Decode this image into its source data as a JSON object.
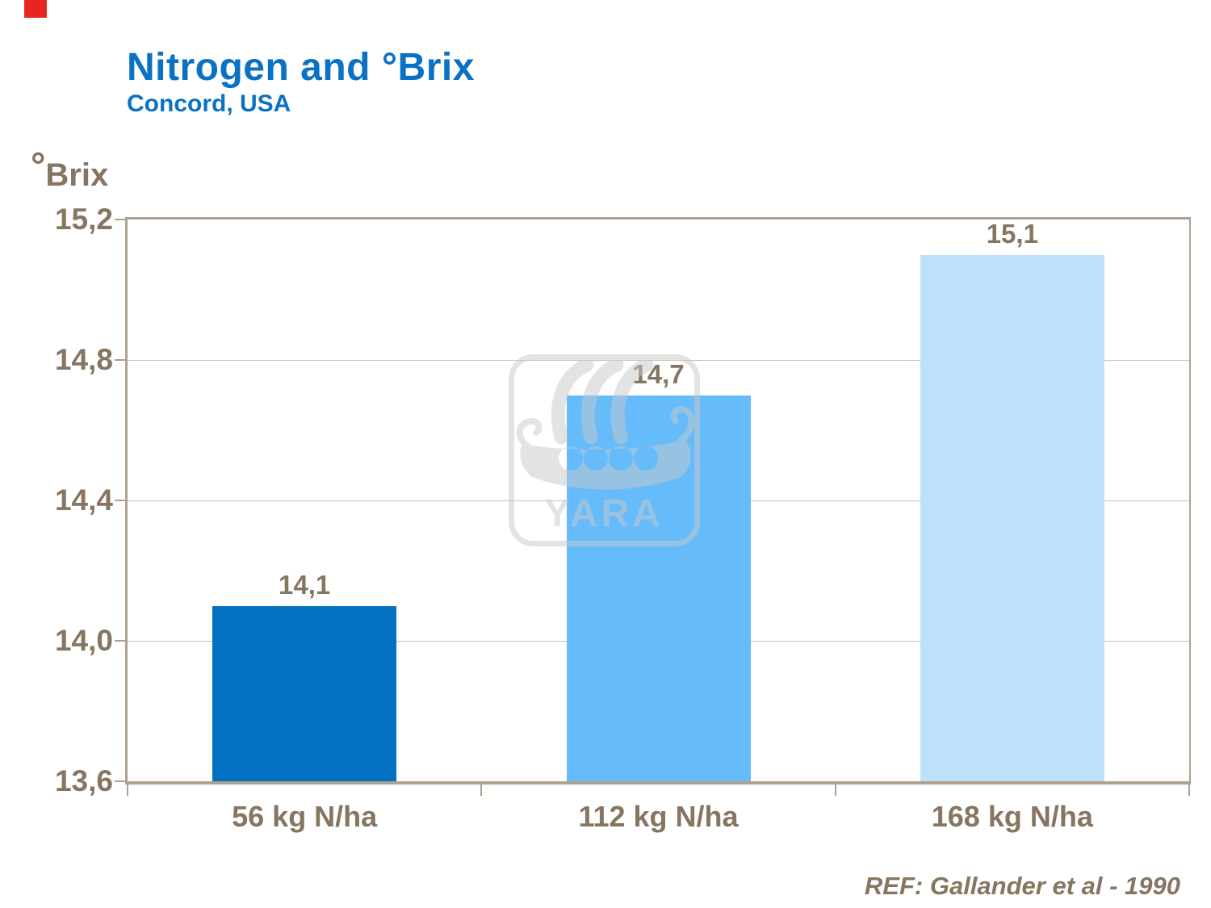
{
  "slide": {
    "title": "Nitrogen and °Brix",
    "subtitle": "Concord, USA",
    "y_unit_symbol": "°",
    "y_unit_text": "Brix",
    "reference": "REF: Gallander et al - 1990"
  },
  "chart_data": {
    "type": "bar",
    "title": "Nitrogen and °Brix",
    "subtitle": "Concord, USA",
    "categories": [
      "56 kg N/ha",
      "112 kg N/ha",
      "168 kg N/ha"
    ],
    "values": [
      14.1,
      14.7,
      15.1
    ],
    "value_labels": [
      "14,1",
      "14,7",
      "15,1"
    ],
    "xlabel": "",
    "ylabel": "°Brix",
    "ylim": [
      13.6,
      15.2
    ],
    "yticks": [
      {
        "value": 15.2,
        "label": "15,2"
      },
      {
        "value": 14.8,
        "label": "14,8"
      },
      {
        "value": 14.4,
        "label": "14,4"
      },
      {
        "value": 14.0,
        "label": "14,0"
      },
      {
        "value": 13.6,
        "label": "13,6"
      }
    ],
    "grid": true,
    "legend": "none",
    "bar_colors": [
      "#0571C2",
      "#66BBFA",
      "#BDE1F8"
    ]
  },
  "watermark": {
    "name": "yara-viking-ship-logo",
    "text": "YARA"
  },
  "colors": {
    "title_blue": "#0A72C5",
    "text_brown": "#867560",
    "frame_tan": "#AEA28F",
    "gridline": "#CCC2B2",
    "corner_red": "#E8251F",
    "watermark_gray": "#C9C9C9"
  }
}
